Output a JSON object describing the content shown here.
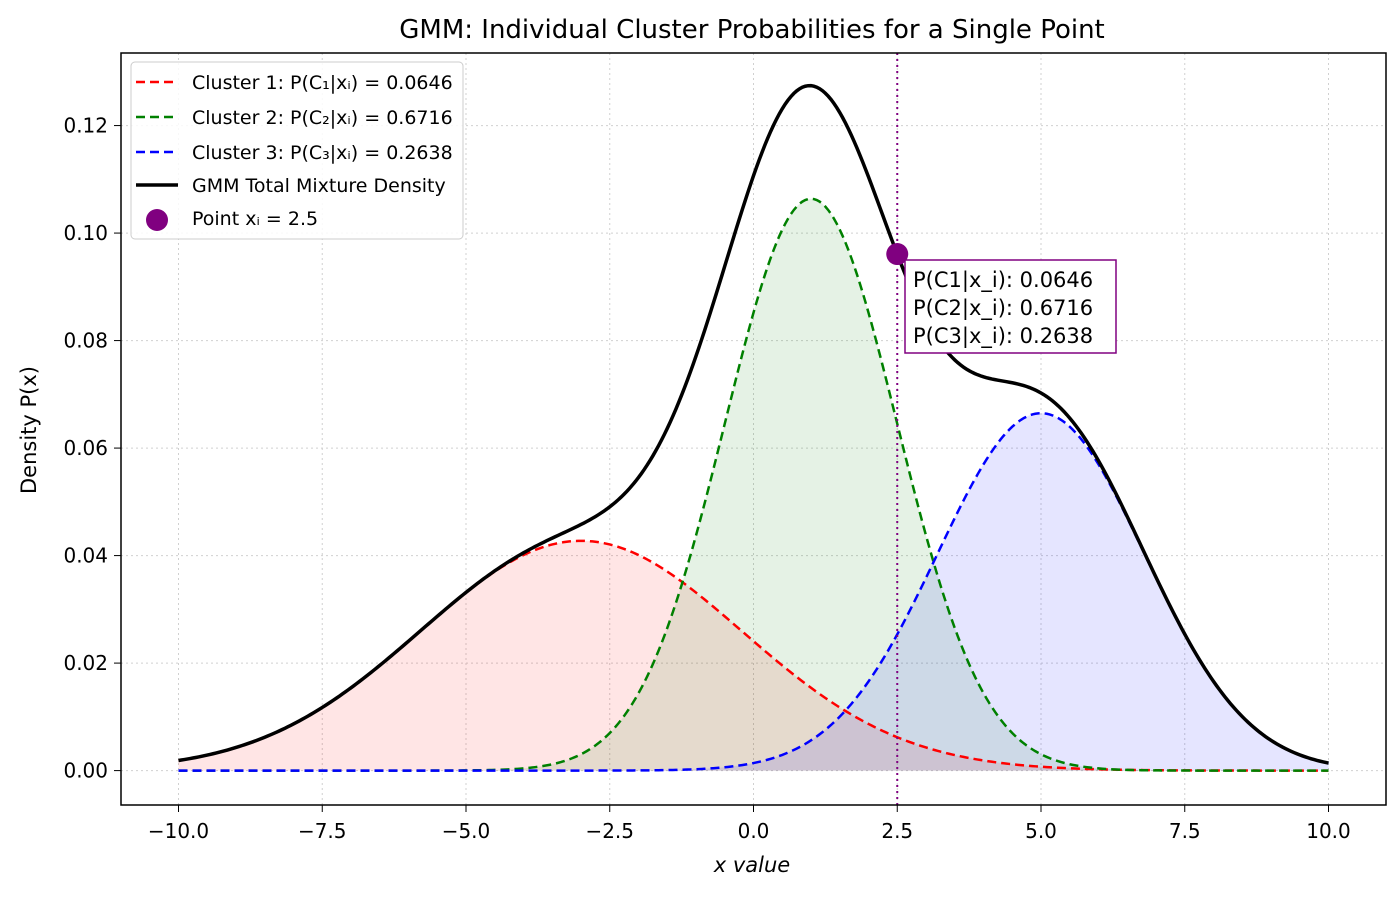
{
  "chart_data": {
    "type": "line",
    "title": "GMM: Individual Cluster Probabilities for a Single Point",
    "xlabel": "x value",
    "ylabel": "Density P(x)",
    "xlim": [
      -11,
      11
    ],
    "ylim": [
      -0.0064,
      0.1335
    ],
    "x_range": [
      -10,
      10
    ],
    "xticks": [
      -10.0,
      -7.5,
      -5.0,
      -2.5,
      0.0,
      2.5,
      5.0,
      7.5,
      10.0
    ],
    "xtick_labels": [
      "−10.0",
      "−7.5",
      "−5.0",
      "−2.5",
      "0.0",
      "2.5",
      "5.0",
      "7.5",
      "10.0"
    ],
    "yticks": [
      0.0,
      0.02,
      0.04,
      0.06,
      0.08,
      0.1,
      0.12
    ],
    "ytick_labels": [
      "0.00",
      "0.02",
      "0.04",
      "0.06",
      "0.08",
      "0.10",
      "0.12"
    ],
    "grid": true,
    "legend_position": "top-left",
    "series": [
      {
        "name": "Cluster 1: P(C₁|xᵢ) = 0.0646",
        "kind": "gaussian-component",
        "mean": -3,
        "std": 2.8,
        "weight": 0.3,
        "color": "#ff0000",
        "style": "dashed",
        "filled": true
      },
      {
        "name": "Cluster 2: P(C₂|xᵢ) = 0.6716",
        "kind": "gaussian-component",
        "mean": 1,
        "std": 1.5,
        "weight": 0.4,
        "color": "#008000",
        "style": "dashed",
        "filled": true
      },
      {
        "name": "Cluster 3: P(C₃|xᵢ) = 0.2638",
        "kind": "gaussian-component",
        "mean": 5,
        "std": 1.8,
        "weight": 0.3,
        "color": "#0000ff",
        "style": "dashed",
        "filled": true
      },
      {
        "name": "GMM Total Mixture Density",
        "kind": "mixture-total",
        "color": "#000000",
        "style": "solid"
      }
    ],
    "point": {
      "name": "Point xᵢ = 2.5",
      "x": 2.5,
      "y": 0.0961,
      "color": "#800080"
    },
    "vline": {
      "x": 2.5,
      "color": "#800080",
      "style": "dotted"
    },
    "annotation": {
      "lines": [
        "P(C1|x_i): 0.0646",
        "P(C2|x_i): 0.6716",
        "P(C3|x_i): 0.2638"
      ],
      "border_color": "#800080"
    }
  }
}
